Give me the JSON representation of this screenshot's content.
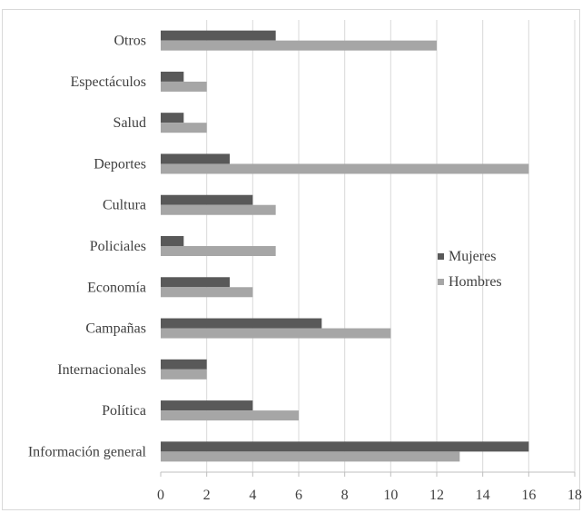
{
  "chart_data": {
    "type": "bar",
    "orientation": "horizontal",
    "categories": [
      "Información general",
      "Política",
      "Internacionales",
      "Campañas",
      "Economía",
      "Policiales",
      "Cultura",
      "Deportes",
      "Salud",
      "Espectáculos",
      "Otros"
    ],
    "series": [
      {
        "name": "Mujeres",
        "color": "#595959",
        "values": [
          16,
          4,
          2,
          7,
          3,
          1,
          4,
          3,
          1,
          1,
          5
        ]
      },
      {
        "name": "Hombres",
        "color": "#a6a6a6",
        "values": [
          13,
          6,
          2,
          10,
          4,
          5,
          5,
          16,
          2,
          2,
          12
        ]
      }
    ],
    "xlim": [
      0,
      18
    ],
    "xticks": [
      "0",
      "2",
      "4",
      "6",
      "8",
      "10",
      "12",
      "14",
      "16",
      "18"
    ],
    "grid": true,
    "legend_position": "right-center",
    "title": "",
    "xlabel": "",
    "ylabel": ""
  }
}
